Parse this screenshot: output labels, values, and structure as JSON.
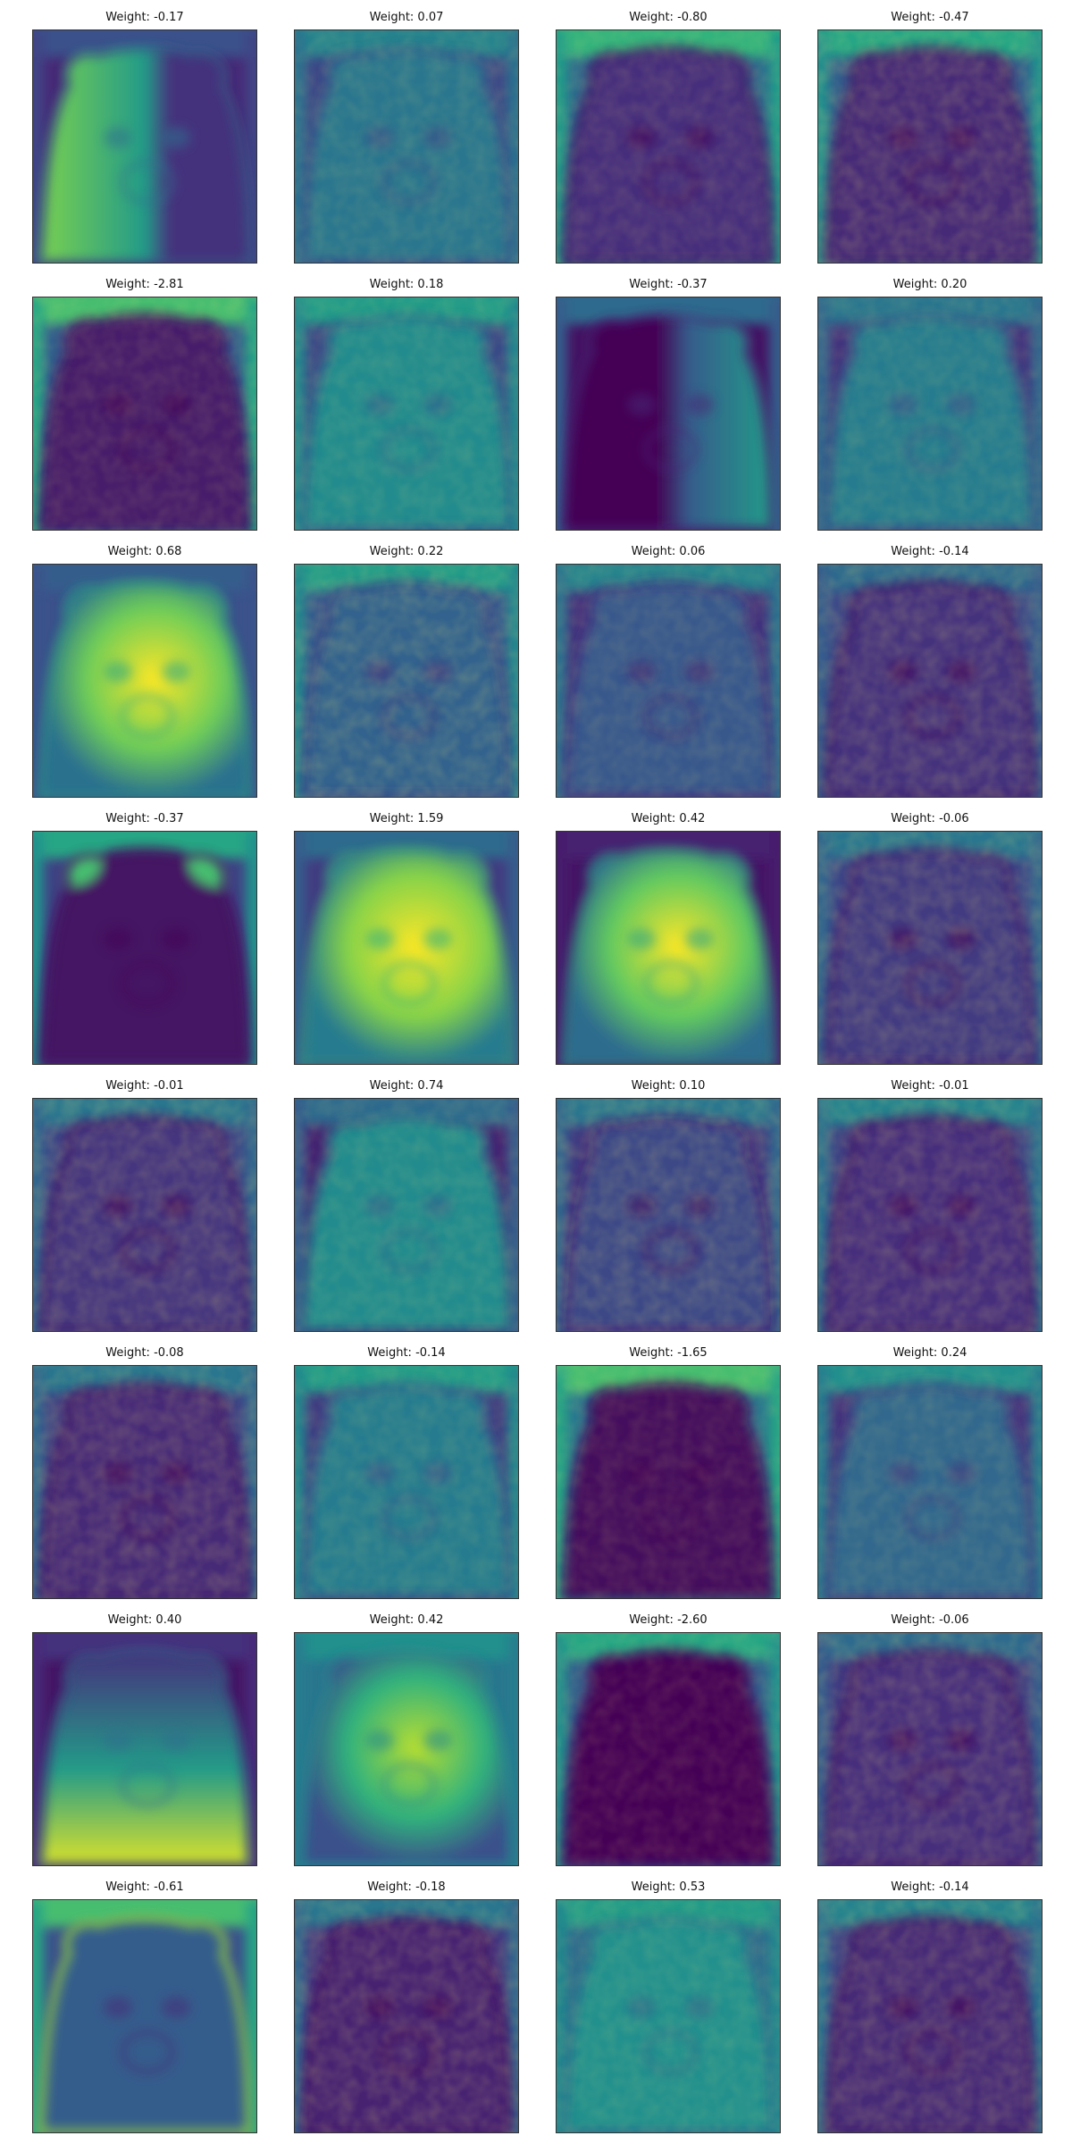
{
  "figure": {
    "label_prefix": "Weight: ",
    "colormap": "viridis",
    "columns": 4,
    "rows": 8,
    "panels": [
      {
        "weight": "-0.17",
        "pattern": "left-half",
        "subject": 0.55,
        "background": 0.12,
        "border": 0.25
      },
      {
        "weight": "0.07",
        "pattern": "uniform",
        "subject": 0.4,
        "background": 0.22,
        "border": 0.45
      },
      {
        "weight": "-0.80",
        "pattern": "border",
        "subject": 0.14,
        "background": 0.35,
        "border": 0.65
      },
      {
        "weight": "-0.47",
        "pattern": "texture",
        "subject": 0.12,
        "background": 0.3,
        "border": 0.6
      },
      {
        "weight": "-2.81",
        "pattern": "border",
        "subject": 0.08,
        "background": 0.3,
        "border": 0.7
      },
      {
        "weight": "0.18",
        "pattern": "uniform",
        "subject": 0.48,
        "background": 0.22,
        "border": 0.55
      },
      {
        "weight": "-0.37",
        "pattern": "right-half",
        "subject": 0.3,
        "background": 0.05,
        "border": 0.35
      },
      {
        "weight": "0.20",
        "pattern": "uniform",
        "subject": 0.42,
        "background": 0.15,
        "border": 0.4
      },
      {
        "weight": "0.68",
        "pattern": "bright",
        "subject": 0.78,
        "background": 0.25,
        "border": 0.3
      },
      {
        "weight": "0.22",
        "pattern": "texture",
        "subject": 0.32,
        "background": 0.28,
        "border": 0.55
      },
      {
        "weight": "0.06",
        "pattern": "uniform",
        "subject": 0.28,
        "background": 0.15,
        "border": 0.45
      },
      {
        "weight": "-0.14",
        "pattern": "texture",
        "subject": 0.15,
        "background": 0.22,
        "border": 0.35
      },
      {
        "weight": "-0.37",
        "pattern": "top-edge",
        "subject": 0.05,
        "background": 0.2,
        "border": 0.6
      },
      {
        "weight": "1.59",
        "pattern": "bright",
        "subject": 0.82,
        "background": 0.18,
        "border": 0.35
      },
      {
        "weight": "0.42",
        "pattern": "bright",
        "subject": 0.76,
        "background": 0.06,
        "border": 0.1
      },
      {
        "weight": "-0.06",
        "pattern": "texture",
        "subject": 0.18,
        "background": 0.22,
        "border": 0.4
      },
      {
        "weight": "-0.01",
        "pattern": "texture",
        "subject": 0.16,
        "background": 0.22,
        "border": 0.4
      },
      {
        "weight": "0.74",
        "pattern": "uniform",
        "subject": 0.48,
        "background": 0.1,
        "border": 0.35
      },
      {
        "weight": "0.10",
        "pattern": "texture",
        "subject": 0.22,
        "background": 0.18,
        "border": 0.4
      },
      {
        "weight": "-0.01",
        "pattern": "texture",
        "subject": 0.14,
        "background": 0.2,
        "border": 0.45
      },
      {
        "weight": "-0.08",
        "pattern": "texture",
        "subject": 0.12,
        "background": 0.2,
        "border": 0.4
      },
      {
        "weight": "-0.14",
        "pattern": "uniform",
        "subject": 0.42,
        "background": 0.18,
        "border": 0.55
      },
      {
        "weight": "-1.65",
        "pattern": "border",
        "subject": 0.03,
        "background": 0.4,
        "border": 0.7
      },
      {
        "weight": "0.24",
        "pattern": "uniform",
        "subject": 0.34,
        "background": 0.15,
        "border": 0.5
      },
      {
        "weight": "0.40",
        "pattern": "bottom-bright",
        "subject": 0.55,
        "background": 0.06,
        "border": 0.15
      },
      {
        "weight": "0.42",
        "pattern": "bright",
        "subject": 0.65,
        "background": 0.4,
        "border": 0.5
      },
      {
        "weight": "-2.60",
        "pattern": "border",
        "subject": 0.01,
        "background": 0.3,
        "border": 0.6
      },
      {
        "weight": "-0.06",
        "pattern": "texture",
        "subject": 0.14,
        "background": 0.18,
        "border": 0.35
      },
      {
        "weight": "-0.61",
        "pattern": "outline",
        "subject": 0.3,
        "background": 0.25,
        "border": 0.7
      },
      {
        "weight": "-0.18",
        "pattern": "texture",
        "subject": 0.1,
        "background": 0.16,
        "border": 0.4
      },
      {
        "weight": "0.53",
        "pattern": "uniform",
        "subject": 0.5,
        "background": 0.35,
        "border": 0.55
      },
      {
        "weight": "-0.14",
        "pattern": "texture",
        "subject": 0.12,
        "background": 0.2,
        "border": 0.45
      }
    ]
  }
}
